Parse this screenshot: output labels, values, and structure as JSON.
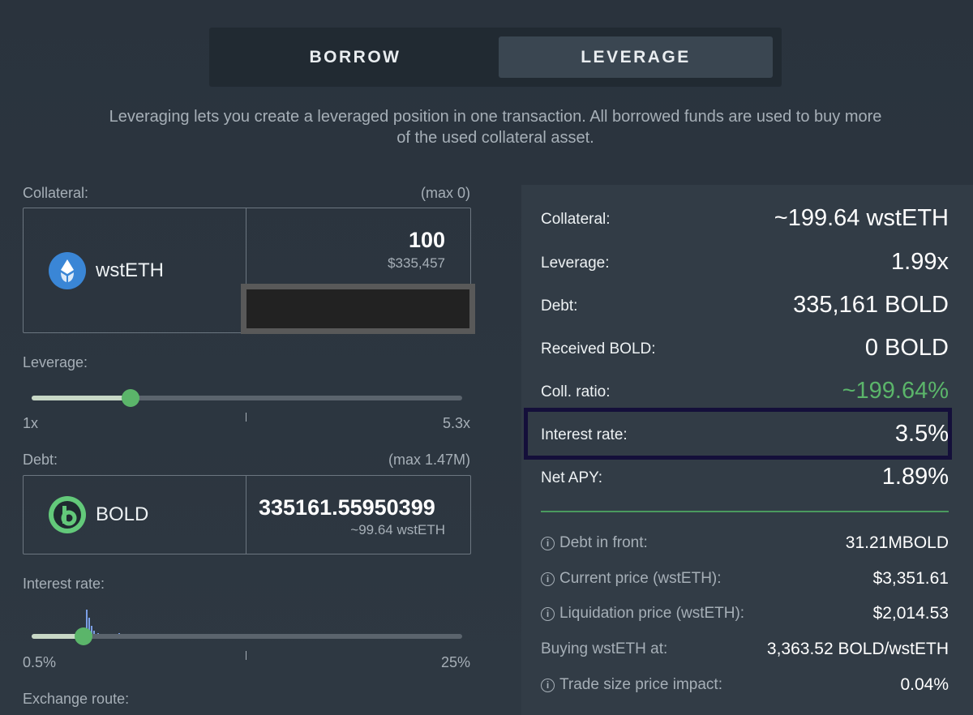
{
  "tabs": {
    "borrow": "BORROW",
    "leverage": "LEVERAGE"
  },
  "description": "Leveraging lets you create a leveraged position in one transaction. All borrowed funds are used to buy more of the used collateral asset.",
  "collateral": {
    "label": "Collateral:",
    "max": "(max 0)",
    "token": "wstETH",
    "amount": "100",
    "usd": "$335,457"
  },
  "leverage": {
    "label": "Leverage:",
    "min": "1x",
    "max": "5.3x",
    "level_fraction": 0.23
  },
  "debt": {
    "label": "Debt:",
    "max": "(max 1.47M)",
    "token": "BOLD",
    "amount": "335161.55950399",
    "sub": "~99.64 wstETH"
  },
  "interest": {
    "label": "Interest rate:",
    "min": "0.5%",
    "max": "25%",
    "level_fraction": 0.12
  },
  "exchange_route_label": "Exchange route:",
  "summary": {
    "rows": [
      {
        "label": "Collateral:",
        "value": "~199.64 wstETH"
      },
      {
        "label": "Leverage:",
        "value": "1.99x"
      },
      {
        "label": "Debt:",
        "value": "335,161 BOLD"
      },
      {
        "label": "Received BOLD:",
        "value": "0 BOLD"
      },
      {
        "label": "Coll. ratio:",
        "value": "~199.64%"
      },
      {
        "label": "Interest rate:",
        "value": "3.5%"
      },
      {
        "label": "Net APY:",
        "value": "1.89%"
      }
    ],
    "details": [
      {
        "label": "Debt in front:",
        "value": "31.21MBOLD"
      },
      {
        "label": "Current price (wstETH):",
        "value": "$3,351.61"
      },
      {
        "label": "Liquidation price (wstETH):",
        "value": "$2,014.53"
      },
      {
        "label": "Buying wstETH at:",
        "value": "3,363.52 BOLD/wstETH"
      },
      {
        "label": "Trade size price impact:",
        "value": "0.04%"
      }
    ]
  },
  "colors": {
    "accent_green": "#5bb56a",
    "highlight_border": "#140f3a",
    "background": "#2b3540"
  },
  "icons": {
    "info": "i",
    "wsteth": "wsteth-logo",
    "bold": "bold-logo"
  }
}
